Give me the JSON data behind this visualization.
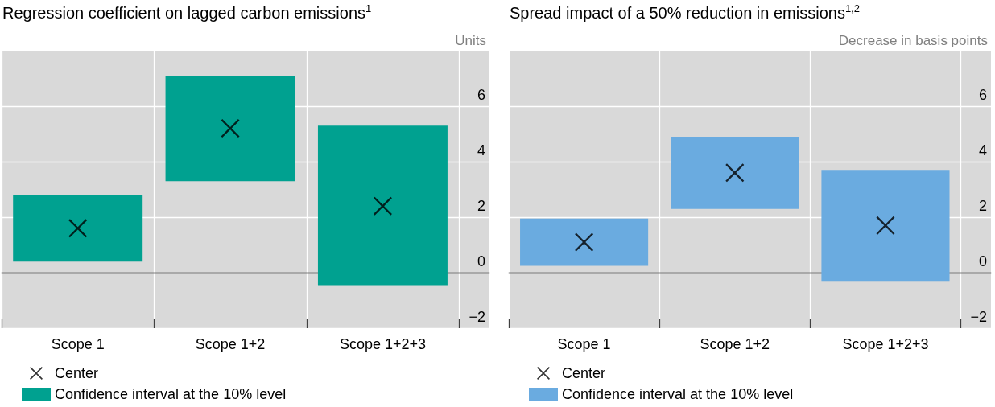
{
  "chart_data": [
    {
      "type": "bar",
      "title": "Regression coefficient on lagged carbon emissions$^{1}$",
      "ylabel": "Units",
      "categories": [
        "Scope 1",
        "Scope 1+2",
        "Scope 1+2+3"
      ],
      "series": [
        {
          "type": "scatter",
          "name": "Center",
          "color": "#000000",
          "marker": "cross",
          "x": [
            "Scope 1",
            "Scope 1+2",
            "Scope 1+2+3"
          ],
          "values": [
            1.6,
            5.2,
            2.4
          ]
        },
        {
          "name": "Confidence interval at the 10% level",
          "color": "#00a190",
          "base": [
            0.4,
            3.3,
            -0.45
          ],
          "values": [
            2.4,
            3.8,
            5.75
          ]
        }
      ],
      "ylim": [
        -2,
        8
      ],
      "yticks": [
        {
          "value": -2,
          "label": "−2"
        },
        0,
        2,
        4,
        6
      ],
      "grid": true,
      "legend": "bottom left"
    },
    {
      "type": "bar",
      "title": "Spread impact of a 50% reduction in emissions$^{1,2}$",
      "ylabel": "Decrease in basis points",
      "categories": [
        "Scope 1",
        "Scope 1+2",
        "Scope 1+2+3"
      ],
      "series": [
        {
          "type": "scatter",
          "name": "Center",
          "color": "#000000",
          "marker": "cross",
          "x": [
            "Scope 1",
            "Scope 1+2",
            "Scope 1+2+3"
          ],
          "values": [
            1.1,
            3.6,
            1.7
          ]
        },
        {
          "name": "Confidence interval at the 10% level",
          "color": "#6aabe0",
          "base": [
            0.25,
            2.3,
            -0.3
          ],
          "values": [
            1.7,
            2.6,
            4.0
          ]
        }
      ],
      "ylim": [
        -2,
        8
      ],
      "yticks": [
        {
          "value": -2,
          "label": "−2"
        },
        0,
        2,
        4,
        6
      ],
      "grid": true,
      "legend": "bottom left"
    }
  ]
}
